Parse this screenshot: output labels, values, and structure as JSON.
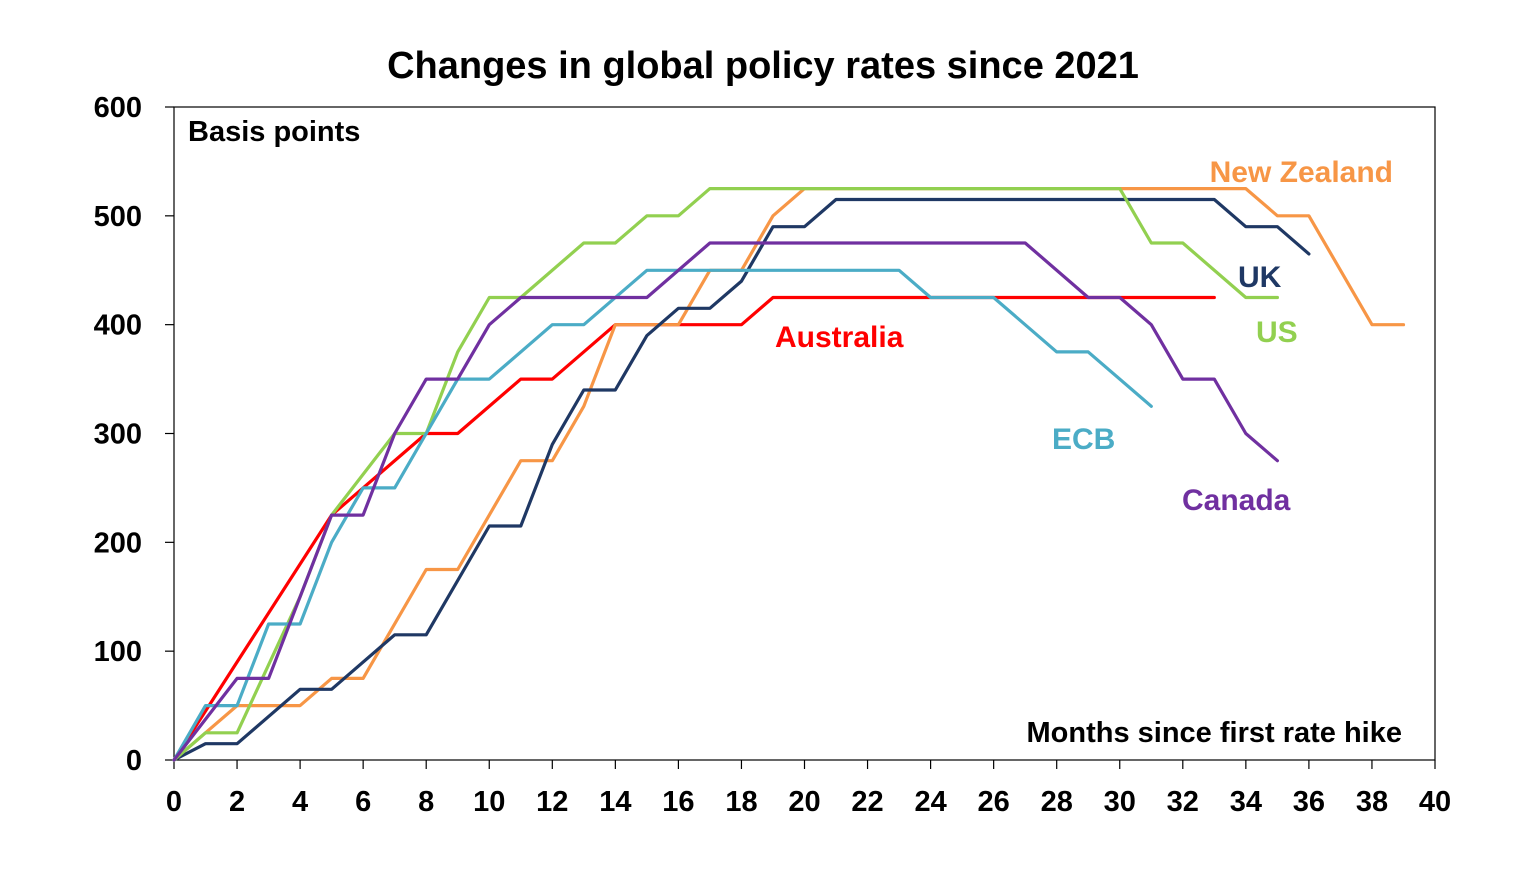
{
  "chart_data": {
    "type": "line",
    "title": "Changes in global policy rates since 2021",
    "ylabel": "Basis points",
    "xlabel": "Months since first rate hike",
    "xlim": [
      0,
      40
    ],
    "ylim": [
      0,
      600
    ],
    "x_ticks": [
      "0",
      "2",
      "4",
      "6",
      "8",
      "10",
      "12",
      "14",
      "16",
      "18",
      "20",
      "22",
      "24",
      "26",
      "28",
      "30",
      "32",
      "34",
      "36",
      "38",
      "40"
    ],
    "y_ticks": [
      "0",
      "100",
      "200",
      "300",
      "400",
      "500",
      "600"
    ],
    "grid": false,
    "legend": "inline labels next to lines",
    "series": [
      {
        "name": "Australia",
        "color": "#ff0000",
        "points": [
          [
            0,
            0
          ],
          [
            5,
            225
          ],
          [
            6,
            250
          ],
          [
            8,
            300
          ],
          [
            9,
            300
          ],
          [
            11,
            350
          ],
          [
            12,
            350
          ],
          [
            14,
            400
          ],
          [
            18,
            400
          ],
          [
            19,
            425
          ],
          [
            33,
            425
          ]
        ]
      },
      {
        "name": "New Zealand",
        "color": "#f79646",
        "points": [
          [
            0,
            0
          ],
          [
            1,
            25
          ],
          [
            2,
            50
          ],
          [
            4,
            50
          ],
          [
            5,
            75
          ],
          [
            6,
            75
          ],
          [
            8,
            175
          ],
          [
            9,
            175
          ],
          [
            11,
            275
          ],
          [
            12,
            275
          ],
          [
            13,
            325
          ],
          [
            14,
            400
          ],
          [
            16,
            400
          ],
          [
            17,
            450
          ],
          [
            18,
            450
          ],
          [
            19,
            500
          ],
          [
            20,
            525
          ],
          [
            34,
            525
          ],
          [
            35,
            500
          ],
          [
            36,
            500
          ],
          [
            38,
            400
          ],
          [
            39,
            400
          ]
        ]
      },
      {
        "name": "UK",
        "color": "#1f3864",
        "points": [
          [
            0,
            0
          ],
          [
            1,
            15
          ],
          [
            2,
            15
          ],
          [
            4,
            65
          ],
          [
            5,
            65
          ],
          [
            7,
            115
          ],
          [
            8,
            115
          ],
          [
            10,
            215
          ],
          [
            11,
            215
          ],
          [
            12,
            290
          ],
          [
            13,
            340
          ],
          [
            14,
            340
          ],
          [
            15,
            390
          ],
          [
            16,
            415
          ],
          [
            17,
            415
          ],
          [
            18,
            440
          ],
          [
            19,
            490
          ],
          [
            20,
            490
          ],
          [
            21,
            515
          ],
          [
            33,
            515
          ],
          [
            34,
            490
          ],
          [
            35,
            490
          ],
          [
            36,
            465
          ]
        ]
      },
      {
        "name": "US",
        "color": "#92d050",
        "points": [
          [
            0,
            0
          ],
          [
            1,
            25
          ],
          [
            2,
            25
          ],
          [
            4,
            150
          ],
          [
            5,
            225
          ],
          [
            7,
            300
          ],
          [
            8,
            300
          ],
          [
            9,
            375
          ],
          [
            10,
            425
          ],
          [
            11,
            425
          ],
          [
            13,
            475
          ],
          [
            14,
            475
          ],
          [
            15,
            500
          ],
          [
            16,
            500
          ],
          [
            17,
            525
          ],
          [
            30,
            525
          ],
          [
            31,
            475
          ],
          [
            32,
            475
          ],
          [
            34,
            425
          ],
          [
            35,
            425
          ]
        ]
      },
      {
        "name": "ECB",
        "color": "#4bacc6",
        "points": [
          [
            0,
            0
          ],
          [
            1,
            50
          ],
          [
            2,
            50
          ],
          [
            3,
            125
          ],
          [
            4,
            125
          ],
          [
            5,
            200
          ],
          [
            6,
            250
          ],
          [
            7,
            250
          ],
          [
            8,
            300
          ],
          [
            9,
            350
          ],
          [
            10,
            350
          ],
          [
            12,
            400
          ],
          [
            13,
            400
          ],
          [
            15,
            450
          ],
          [
            23,
            450
          ],
          [
            24,
            425
          ],
          [
            26,
            425
          ],
          [
            28,
            375
          ],
          [
            29,
            375
          ],
          [
            31,
            325
          ]
        ]
      },
      {
        "name": "Canada",
        "color": "#7030a0",
        "points": [
          [
            0,
            0
          ],
          [
            2,
            75
          ],
          [
            3,
            75
          ],
          [
            5,
            225
          ],
          [
            6,
            225
          ],
          [
            7,
            300
          ],
          [
            8,
            350
          ],
          [
            9,
            350
          ],
          [
            10,
            400
          ],
          [
            11,
            425
          ],
          [
            15,
            425
          ],
          [
            17,
            475
          ],
          [
            27,
            475
          ],
          [
            29,
            425
          ],
          [
            30,
            425
          ],
          [
            31,
            400
          ],
          [
            32,
            350
          ],
          [
            33,
            350
          ],
          [
            34,
            300
          ],
          [
            35,
            275
          ]
        ]
      }
    ]
  }
}
